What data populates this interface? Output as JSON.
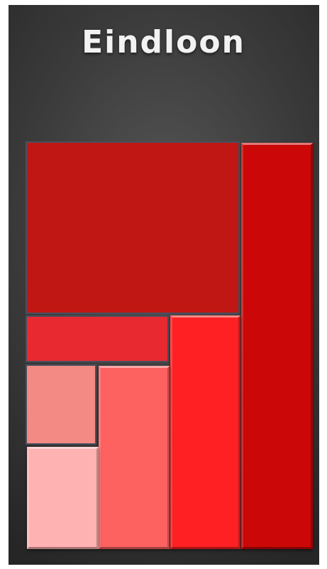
{
  "title": "Eindloon",
  "blocks": [
    {
      "id": "top-left",
      "color": "#c11714"
    },
    {
      "id": "right-column",
      "color": "#cc0707"
    },
    {
      "id": "middle-bar",
      "color": "#e82a30"
    },
    {
      "id": "tall-red",
      "color": "#ff2023"
    },
    {
      "id": "salmon",
      "color": "#f38a84"
    },
    {
      "id": "coral",
      "color": "#fd6160"
    },
    {
      "id": "light-pink",
      "color": "#ffb2b2"
    }
  ]
}
